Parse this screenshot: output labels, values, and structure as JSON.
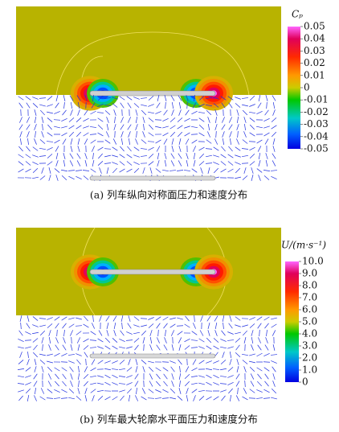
{
  "panels": [
    {
      "caption": "(a) 列车纵向对称面压力和速度分布",
      "colorbar": {
        "label": "Cₚ",
        "ticks": [
          0.05,
          0.04,
          0.03,
          0.02,
          0.01,
          0,
          -0.01,
          -0.02,
          -0.03,
          -0.04,
          -0.05
        ]
      }
    },
    {
      "caption": "(b) 列车最大轮廓水平面压力和速度分布",
      "colorbar": {
        "label": "U/(m·s⁻¹)",
        "ticks": [
          {
            "value": 10,
            "label": "10.0"
          },
          {
            "value": 9,
            "label": "9.0"
          },
          {
            "value": 8,
            "label": "8.0"
          },
          {
            "value": 7,
            "label": "7.0"
          },
          {
            "value": 6,
            "label": "6.0"
          },
          {
            "value": 5,
            "label": "5.0"
          },
          {
            "value": 4,
            "label": "4.0"
          },
          {
            "value": 3,
            "label": "3.0"
          },
          {
            "value": 2,
            "label": "2.0"
          },
          {
            "value": 1,
            "label": "1.0"
          },
          0
        ]
      }
    }
  ]
}
